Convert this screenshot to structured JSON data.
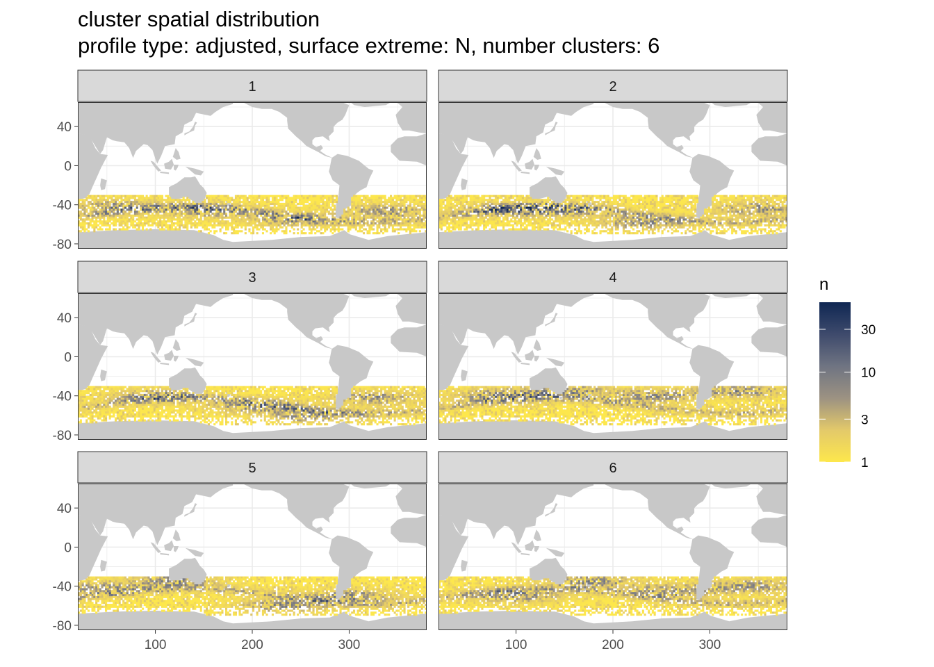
{
  "chart_data": {
    "type": "heatmap",
    "title": "cluster spatial distribution",
    "subtitle": "profile type: adjusted, surface extreme: N, number clusters: 6",
    "xlabel": "",
    "ylabel": "",
    "xlim": [
      20,
      380
    ],
    "ylim": [
      -85,
      65
    ],
    "x_ticks": [
      100,
      200,
      300
    ],
    "y_ticks": [
      40,
      0,
      -40,
      -80
    ],
    "grid": true,
    "facet_layout": "3 rows x 2 columns",
    "facets": [
      {
        "label": "1"
      },
      {
        "label": "2"
      },
      {
        "label": "3"
      },
      {
        "label": "4"
      },
      {
        "label": "5"
      },
      {
        "label": "6"
      }
    ],
    "data_extent": {
      "lat_range": [
        -70,
        -30
      ],
      "lon_range": [
        20,
        380
      ]
    },
    "legend": {
      "title": "n",
      "position": "right",
      "scale": "log",
      "ticks": [
        1,
        3,
        10,
        30
      ],
      "range": [
        1,
        60
      ],
      "colors": [
        "#FDE74C",
        "#E3C96A",
        "#9C9282",
        "#6F7482",
        "#3E4A6C",
        "#0F2753"
      ]
    },
    "land_color": "#C8C8C8",
    "strip_color": "#D9D9D9"
  }
}
